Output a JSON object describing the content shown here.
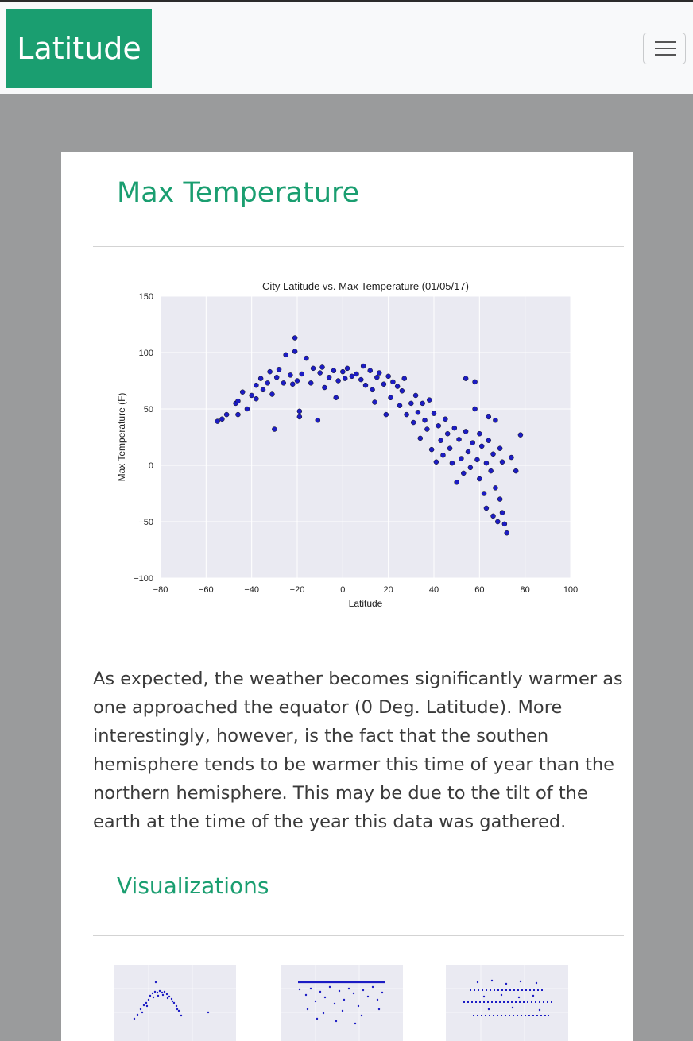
{
  "navbar": {
    "brand": "Latitude",
    "toggler_icon": "hamburger-icon"
  },
  "section": {
    "title": "Max Temperature",
    "description": "As expected, the weather becomes significantly warmer as one approached the equator (0 Deg. Latitude). More interestingly, however, is the fact that the southen hemisphere tends to be warmer this time of year than the northern hemisphere. This may be due to the tilt of the earth at the time of the year this data was gathered."
  },
  "visualizations": {
    "title": "Visualizations"
  },
  "colors": {
    "brand": "#1a9e70",
    "page_background": "#9a9b9c",
    "plot_background": "#eaeaf2",
    "marker": "#1c1cc4"
  },
  "chart_data": [
    {
      "type": "scatter",
      "title": "City Latitude vs. Max Temperature (01/05/17)",
      "xlabel": "Latitude",
      "ylabel": "Max Temperature (F)",
      "xlim": [
        -80,
        100
      ],
      "ylim": [
        -100,
        150
      ],
      "xticks": [
        -80,
        -60,
        -40,
        -20,
        0,
        20,
        40,
        60,
        80,
        100
      ],
      "yticks": [
        -100,
        -50,
        0,
        50,
        100,
        150
      ],
      "xtick_labels": [
        "−80",
        "−60",
        "−40",
        "−20",
        "0",
        "20",
        "40",
        "60",
        "80",
        "100"
      ],
      "ytick_labels": [
        "−100",
        "−50",
        "0",
        "50",
        "100",
        "150"
      ],
      "grid": true,
      "points": [
        [
          -55,
          39
        ],
        [
          -53,
          41
        ],
        [
          -51,
          45
        ],
        [
          -47,
          55
        ],
        [
          -46,
          57
        ],
        [
          -46,
          45
        ],
        [
          -44,
          65
        ],
        [
          -42,
          50
        ],
        [
          -40,
          62
        ],
        [
          -38,
          59
        ],
        [
          -38,
          71
        ],
        [
          -36,
          77
        ],
        [
          -35,
          67
        ],
        [
          -33,
          73
        ],
        [
          -32,
          83
        ],
        [
          -31,
          63
        ],
        [
          -30,
          32
        ],
        [
          -29,
          78
        ],
        [
          -28,
          85
        ],
        [
          -26,
          73
        ],
        [
          -25,
          98
        ],
        [
          -23,
          80
        ],
        [
          -22,
          72
        ],
        [
          -21,
          113
        ],
        [
          -21,
          101
        ],
        [
          -20,
          75
        ],
        [
          -19,
          48
        ],
        [
          -19,
          43
        ],
        [
          -18,
          81
        ],
        [
          -16,
          95
        ],
        [
          -14,
          73
        ],
        [
          -13,
          86
        ],
        [
          -11,
          40
        ],
        [
          -10,
          82
        ],
        [
          -9,
          87
        ],
        [
          -8,
          69
        ],
        [
          -6,
          78
        ],
        [
          -4,
          84
        ],
        [
          -3,
          60
        ],
        [
          -2,
          75
        ],
        [
          0,
          83
        ],
        [
          1,
          77
        ],
        [
          2,
          86
        ],
        [
          4,
          79
        ],
        [
          6,
          81
        ],
        [
          8,
          76
        ],
        [
          9,
          88
        ],
        [
          10,
          71
        ],
        [
          12,
          84
        ],
        [
          13,
          67
        ],
        [
          14,
          56
        ],
        [
          15,
          78
        ],
        [
          16,
          82
        ],
        [
          18,
          72
        ],
        [
          19,
          45
        ],
        [
          20,
          79
        ],
        [
          21,
          60
        ],
        [
          22,
          74
        ],
        [
          24,
          70
        ],
        [
          25,
          53
        ],
        [
          26,
          66
        ],
        [
          27,
          77
        ],
        [
          28,
          45
        ],
        [
          30,
          55
        ],
        [
          31,
          38
        ],
        [
          32,
          62
        ],
        [
          33,
          47
        ],
        [
          34,
          24
        ],
        [
          35,
          55
        ],
        [
          36,
          40
        ],
        [
          37,
          32
        ],
        [
          38,
          58
        ],
        [
          39,
          14
        ],
        [
          40,
          46
        ],
        [
          41,
          3
        ],
        [
          42,
          35
        ],
        [
          43,
          22
        ],
        [
          44,
          9
        ],
        [
          45,
          41
        ],
        [
          46,
          28
        ],
        [
          47,
          15
        ],
        [
          48,
          2
        ],
        [
          49,
          33
        ],
        [
          50,
          -15
        ],
        [
          51,
          23
        ],
        [
          52,
          6
        ],
        [
          53,
          -7
        ],
        [
          54,
          30
        ],
        [
          54,
          77
        ],
        [
          55,
          12
        ],
        [
          56,
          -2
        ],
        [
          57,
          20
        ],
        [
          58,
          50
        ],
        [
          58,
          74
        ],
        [
          59,
          5
        ],
        [
          60,
          28
        ],
        [
          60,
          -12
        ],
        [
          61,
          17
        ],
        [
          62,
          -25
        ],
        [
          63,
          2
        ],
        [
          63,
          -38
        ],
        [
          64,
          22
        ],
        [
          64,
          43
        ],
        [
          65,
          -5
        ],
        [
          66,
          10
        ],
        [
          66,
          -45
        ],
        [
          67,
          40
        ],
        [
          67,
          -20
        ],
        [
          68,
          -50
        ],
        [
          69,
          15
        ],
        [
          69,
          -30
        ],
        [
          70,
          3
        ],
        [
          70,
          -42
        ],
        [
          71,
          -52
        ],
        [
          72,
          -60
        ],
        [
          74,
          7
        ],
        [
          76,
          -5
        ],
        [
          78,
          27
        ]
      ]
    }
  ]
}
